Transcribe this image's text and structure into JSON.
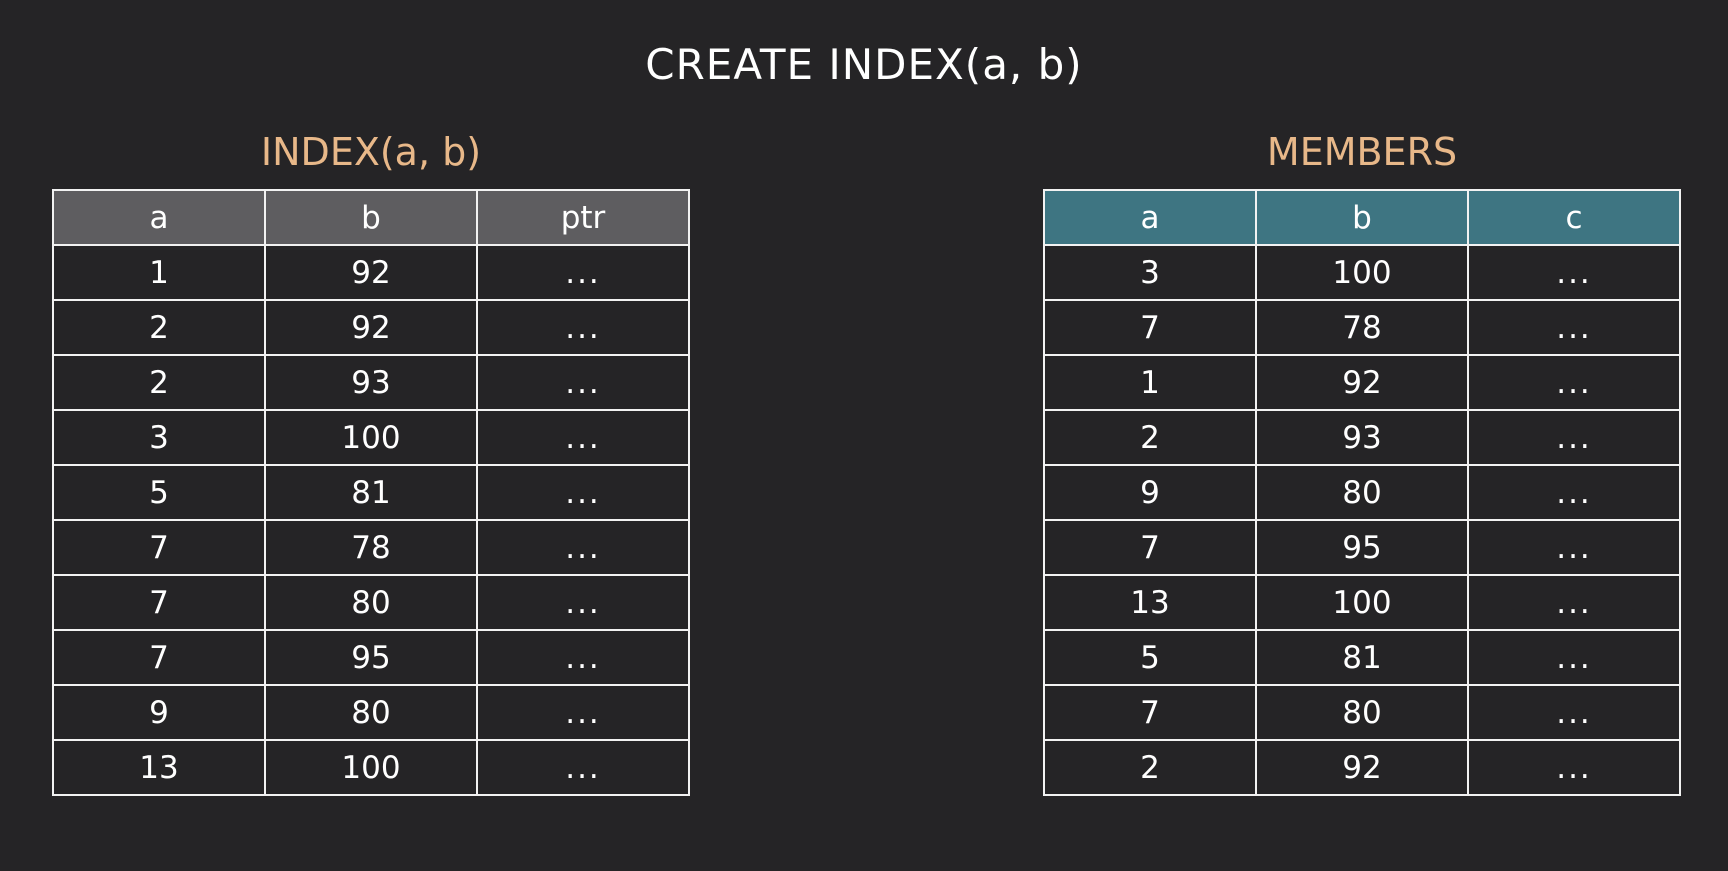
{
  "title": "CREATE INDEX(a, b)",
  "index_table": {
    "title": "INDEX(a, b)",
    "columns": [
      "a",
      "b",
      "ptr"
    ],
    "rows": [
      [
        "1",
        "92",
        "..."
      ],
      [
        "2",
        "92",
        "..."
      ],
      [
        "2",
        "93",
        "..."
      ],
      [
        "3",
        "100",
        "..."
      ],
      [
        "5",
        "81",
        "..."
      ],
      [
        "7",
        "78",
        "..."
      ],
      [
        "7",
        "80",
        "..."
      ],
      [
        "7",
        "95",
        "..."
      ],
      [
        "9",
        "80",
        "..."
      ],
      [
        "13",
        "100",
        "..."
      ]
    ],
    "header_color": "#5e5d60"
  },
  "members_table": {
    "title": "MEMBERS",
    "columns": [
      "a",
      "b",
      "c"
    ],
    "rows": [
      [
        "3",
        "100",
        "..."
      ],
      [
        "7",
        "78",
        "..."
      ],
      [
        "1",
        "92",
        "..."
      ],
      [
        "2",
        "93",
        "..."
      ],
      [
        "9",
        "80",
        "..."
      ],
      [
        "7",
        "95",
        "..."
      ],
      [
        "13",
        "100",
        "..."
      ],
      [
        "5",
        "81",
        "..."
      ],
      [
        "7",
        "80",
        "..."
      ],
      [
        "2",
        "92",
        "..."
      ]
    ],
    "header_color": "#3e7582"
  },
  "colors": {
    "background": "#252426",
    "table_title": "#e8b889",
    "text": "#ffffff",
    "border": "#f2f2f2"
  }
}
